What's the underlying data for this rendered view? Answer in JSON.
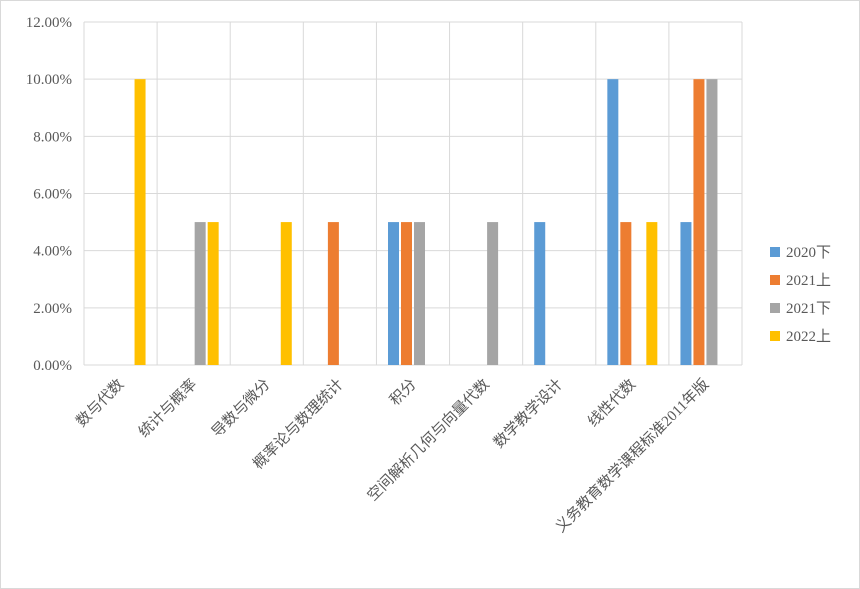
{
  "chart_data": {
    "type": "bar",
    "categories": [
      "数与代数",
      "统计与概率",
      "导数与微分",
      "概率论与数理统计",
      "积分",
      "空间解析几何与向量代数",
      "数学教学设计",
      "线性代数",
      "义务教育数学课程标准2011年版"
    ],
    "series": [
      {
        "name": "2020下",
        "color": "#5b9bd5",
        "values": [
          0,
          0,
          0,
          0,
          5,
          0,
          5,
          10,
          5
        ]
      },
      {
        "name": "2021上",
        "color": "#ed7d31",
        "values": [
          0,
          0,
          0,
          5,
          5,
          0,
          0,
          5,
          10
        ]
      },
      {
        "name": "2021下",
        "color": "#a5a5a5",
        "values": [
          0,
          5,
          0,
          0,
          5,
          5,
          0,
          0,
          10
        ]
      },
      {
        "name": "2022上",
        "color": "#ffc000",
        "values": [
          10,
          5,
          5,
          0,
          0,
          0,
          0,
          5,
          0
        ]
      }
    ],
    "ylim": [
      0,
      12
    ],
    "yticks": [
      {
        "value": 0,
        "label": "0.00%"
      },
      {
        "value": 2,
        "label": "2.00%"
      },
      {
        "value": 4,
        "label": "4.00%"
      },
      {
        "value": 6,
        "label": "6.00%"
      },
      {
        "value": 8,
        "label": "8.00%"
      },
      {
        "value": 10,
        "label": "10.00%"
      },
      {
        "value": 12,
        "label": "12.00%"
      }
    ],
    "grid": true,
    "legend": "right"
  }
}
